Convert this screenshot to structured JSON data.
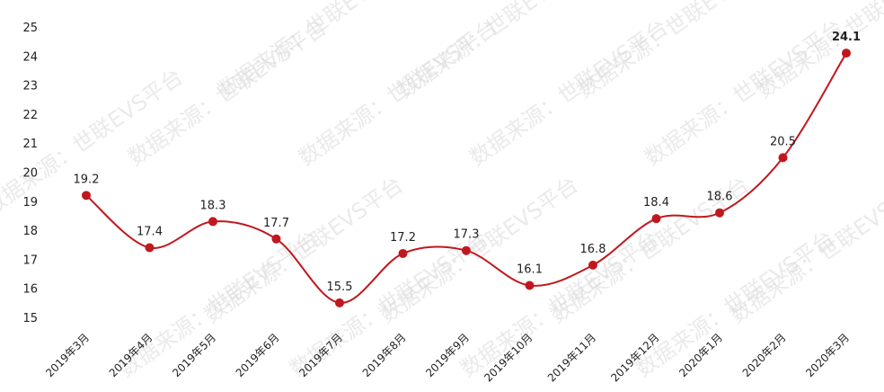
{
  "chart_data": {
    "type": "line",
    "title": "",
    "xlabel": "",
    "ylabel": "",
    "categories": [
      "2019年3月",
      "2019年4月",
      "2019年5月",
      "2019年6月",
      "2019年7月",
      "2019年8月",
      "2019年9月",
      "2019年10月",
      "2019年11月",
      "2019年12月",
      "2020年1月",
      "2020年2月",
      "2020年3月"
    ],
    "series": [
      {
        "values": [
          19.2,
          17.4,
          18.3,
          17.7,
          15.5,
          17.2,
          17.3,
          16.1,
          16.8,
          18.4,
          18.6,
          20.5,
          24.1
        ]
      }
    ],
    "data_labels": [
      "19.2",
      "17.4",
      "18.3",
      "17.7",
      "15.5",
      "17.2",
      "17.3",
      "16.1",
      "16.8",
      "18.4",
      "18.6",
      "20.5",
      "24.1"
    ],
    "ylim": [
      15,
      25
    ],
    "yticks": [
      "15",
      "16",
      "17",
      "18",
      "19",
      "20",
      "21",
      "22",
      "23",
      "24",
      "25"
    ],
    "grid": false,
    "legend": "none",
    "line_color": "#c0181e",
    "marker_color": "#c0181e",
    "watermark": "数据来源：世联EVS平台"
  }
}
